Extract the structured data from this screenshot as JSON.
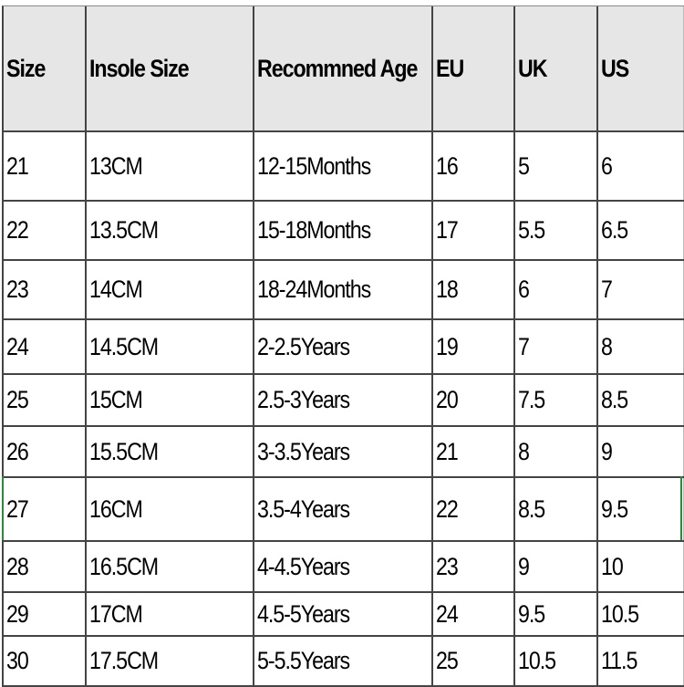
{
  "headers": [
    "Size",
    "Insole Size",
    "Recommned Age",
    "EU",
    "UK",
    "US"
  ],
  "rows": [
    [
      "21",
      "13CM",
      "12-15Months",
      "16",
      "5",
      "6"
    ],
    [
      "22",
      "13.5CM",
      "15-18Months",
      "17",
      "5.5",
      "6.5"
    ],
    [
      "23",
      "14CM",
      "18-24Months",
      "18",
      "6",
      "7"
    ],
    [
      "24",
      "14.5CM",
      "2-2.5Years",
      "19",
      "7",
      "8"
    ],
    [
      "25",
      "15CM",
      "2.5-3Years",
      "20",
      "7.5",
      "8.5"
    ],
    [
      "26",
      "15.5CM",
      "3-3.5Years",
      "21",
      "8",
      "9"
    ],
    [
      "27",
      "16CM",
      "3.5-4Years",
      "22",
      "8.5",
      "9.5"
    ],
    [
      "28",
      "16.5CM",
      "4-4.5Years",
      "23",
      "9",
      "10"
    ],
    [
      "29",
      "17CM",
      "4.5-5Years",
      "24",
      "9.5",
      "10.5"
    ],
    [
      "30",
      "17.5CM",
      "5-5.5Years",
      "25",
      "10.5",
      "11.5"
    ]
  ],
  "colors": {
    "header_bg": "#e6e6e6",
    "grid": "#444444",
    "selection": "#2a8a3a"
  }
}
